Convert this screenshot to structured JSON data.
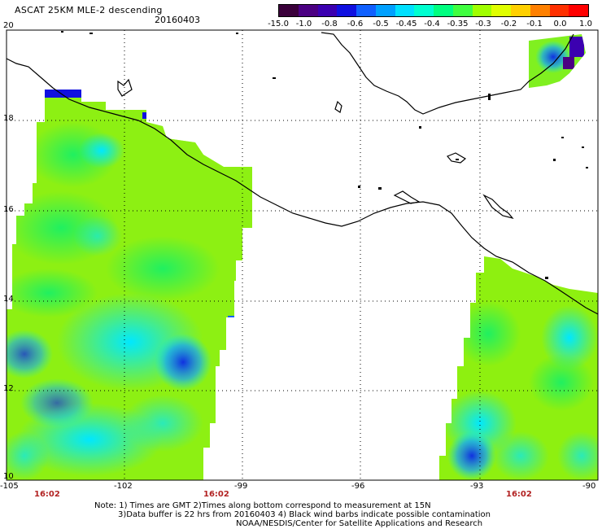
{
  "title": "ASCAT 25KM MLE-2 descending",
  "date": "20160403",
  "colorbar": {
    "colors": [
      "#3a003a",
      "#4b0082",
      "#3b00b0",
      "#1010e0",
      "#1060ff",
      "#00a0ff",
      "#00e0ff",
      "#00ffd0",
      "#00ff80",
      "#40ff40",
      "#a0ff00",
      "#e0ff00",
      "#ffd000",
      "#ff8000",
      "#ff3000",
      "#ff0000"
    ],
    "labels": [
      "-15.0",
      "-1.0",
      "-0.8",
      "-0.6",
      "-0.5",
      "-0.45",
      "-0.4",
      "-0.35",
      "-0.3",
      "-0.2",
      "-0.1",
      "0.0",
      "1.0"
    ]
  },
  "axes": {
    "lat_labels": [
      "20",
      "18",
      "16",
      "14",
      "12",
      "10"
    ],
    "lon_labels": [
      "-105",
      "-102",
      "-99",
      "-96",
      "-93",
      "-90"
    ]
  },
  "time_labels": [
    "16:02",
    "16:02",
    "16:02"
  ],
  "notes": [
    "Note: 1) Times are GMT 2)Times along bottom correspond to measurement at 15N",
    "3)Data buffer is 22 hrs from 20160403 4) Black wind barbs indicate possible contamination",
    "NOAA/NESDIS/Center for Satellite Applications and Research"
  ]
}
